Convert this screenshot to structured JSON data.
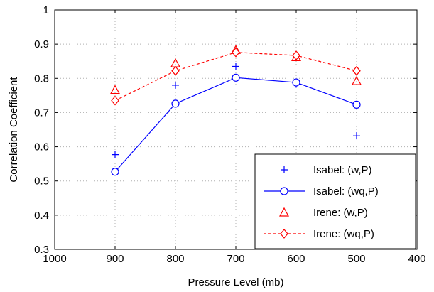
{
  "chart_data": {
    "type": "line",
    "xlabel": "Pressure Level (mb)",
    "ylabel": "Correlation Coefficient",
    "xlim": [
      1000,
      400
    ],
    "ylim": [
      0.3,
      1
    ],
    "x_reversed": true,
    "xticks": [
      "1000",
      "900",
      "800",
      "700",
      "600",
      "500",
      "400"
    ],
    "yticks": [
      "0.3",
      "0.4",
      "0.5",
      "0.6",
      "0.7",
      "0.8",
      "0.9",
      "1"
    ],
    "grid": true,
    "legend_position": "bottom-right",
    "series": [
      {
        "name": "Isabel: (w,P)",
        "color": "#0000ff",
        "marker": "plus",
        "line": "none",
        "x": [
          900,
          800,
          700,
          600,
          500
        ],
        "y": [
          0.577,
          0.78,
          0.835,
          0.783,
          0.632
        ]
      },
      {
        "name": "Isabel: (wq,P)",
        "color": "#0000ff",
        "marker": "circle",
        "line": "solid",
        "x": [
          900,
          800,
          700,
          600,
          500
        ],
        "y": [
          0.527,
          0.726,
          0.802,
          0.788,
          0.723
        ]
      },
      {
        "name": "Irene: (w,P)",
        "color": "#ff0000",
        "marker": "triangle",
        "line": "none",
        "x": [
          900,
          800,
          700,
          600,
          500
        ],
        "y": [
          0.766,
          0.844,
          0.883,
          0.862,
          0.792
        ]
      },
      {
        "name": "Irene: (wq,P)",
        "color": "#ff0000",
        "marker": "diamond",
        "line": "dashed",
        "x": [
          900,
          800,
          700,
          600,
          500
        ],
        "y": [
          0.735,
          0.822,
          0.876,
          0.867,
          0.822
        ]
      }
    ]
  }
}
